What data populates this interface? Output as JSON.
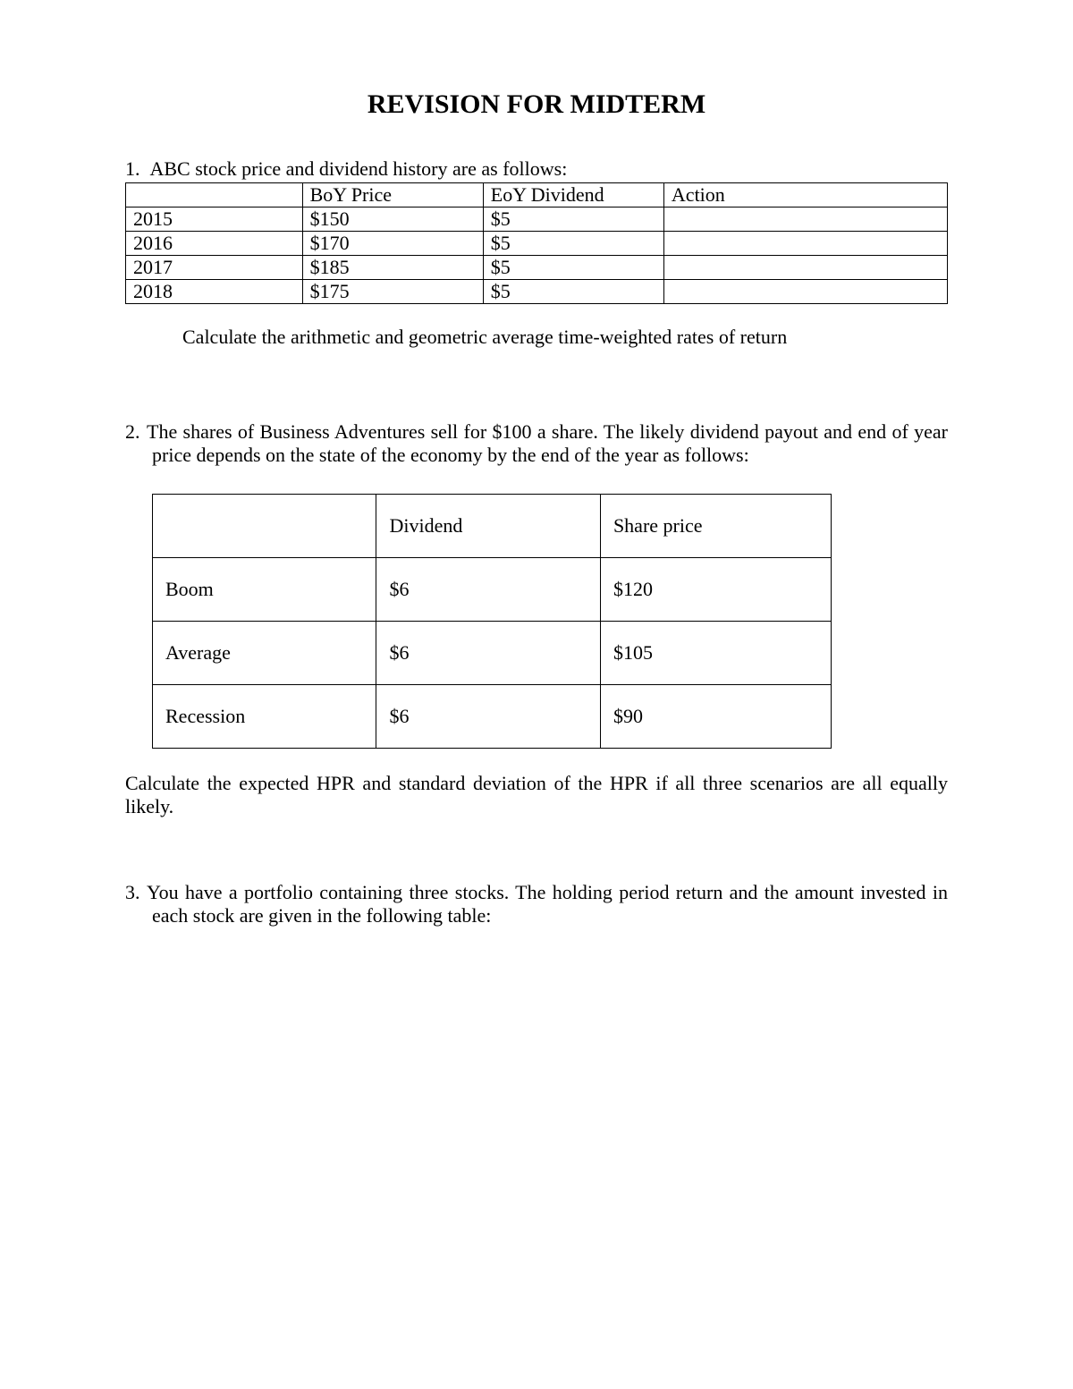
{
  "title": "REVISION FOR MIDTERM",
  "q1": {
    "number": "1.",
    "intro": "ABC stock price and dividend history are as follows:",
    "table": {
      "headers": [
        "",
        "BoY Price",
        "EoY Dividend",
        "Action"
      ],
      "rows": [
        [
          "2015",
          "$150",
          "$5",
          ""
        ],
        [
          "2016",
          "$170",
          "$5",
          ""
        ],
        [
          "2017",
          "$185",
          "$5",
          ""
        ],
        [
          "2018",
          "$175",
          "$5",
          ""
        ]
      ]
    },
    "task": "Calculate the arithmetic and geometric average time-weighted rates of return"
  },
  "q2": {
    "number": "2.",
    "intro": "The shares of Business Adventures sell for $100 a share. The likely dividend payout and end of year price depends on the state of the economy by the end of the year as follows:",
    "table": {
      "headers": [
        "",
        "Dividend",
        "Share price"
      ],
      "rows": [
        [
          "Boom",
          "$6",
          "$120"
        ],
        [
          "Average",
          "$6",
          "$105"
        ],
        [
          "Recession",
          "$6",
          "$90"
        ]
      ]
    },
    "task": "Calculate the expected HPR and standard deviation of the HPR if all three scenarios are all equally likely."
  },
  "q3": {
    "number": "3.",
    "intro": "You have a portfolio containing three stocks. The holding period return and the amount invested in each stock are given in the following table:"
  }
}
